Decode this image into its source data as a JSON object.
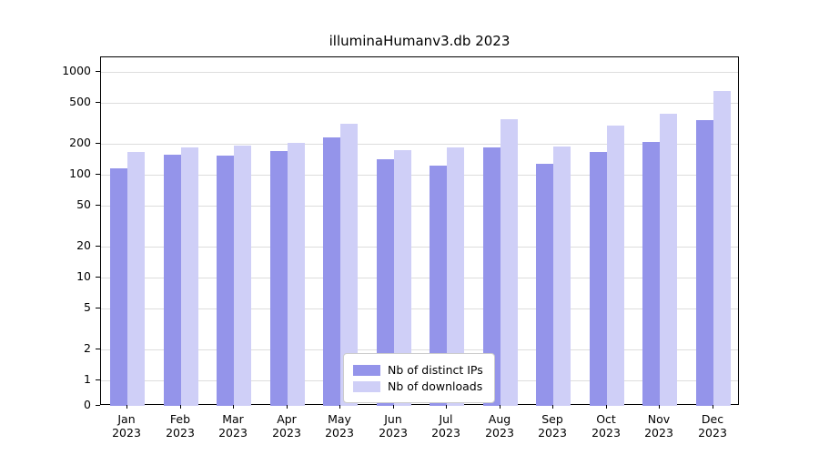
{
  "chart_data": {
    "type": "bar",
    "title": "illuminaHumanv3.db 2023",
    "categories": [
      "Jan",
      "Feb",
      "Mar",
      "Apr",
      "May",
      "Jun",
      "Jul",
      "Aug",
      "Sep",
      "Oct",
      "Nov",
      "Dec"
    ],
    "year": "2023",
    "series": [
      {
        "name": "Nb of distinct IPs",
        "color": "#9494ea",
        "values": [
          115,
          155,
          152,
          170,
          230,
          140,
          122,
          185,
          127,
          165,
          210,
          340
        ]
      },
      {
        "name": "Nb of downloads",
        "color": "#cfcff7",
        "values": [
          165,
          185,
          192,
          205,
          310,
          175,
          185,
          350,
          190,
          300,
          390,
          650
        ]
      }
    ],
    "yscale": "log",
    "y_ticks": [
      0,
      1,
      2,
      5,
      10,
      20,
      50,
      100,
      200,
      500,
      1000
    ],
    "ylim": [
      0,
      1000
    ],
    "grid": true,
    "legend_position": "lower center"
  }
}
